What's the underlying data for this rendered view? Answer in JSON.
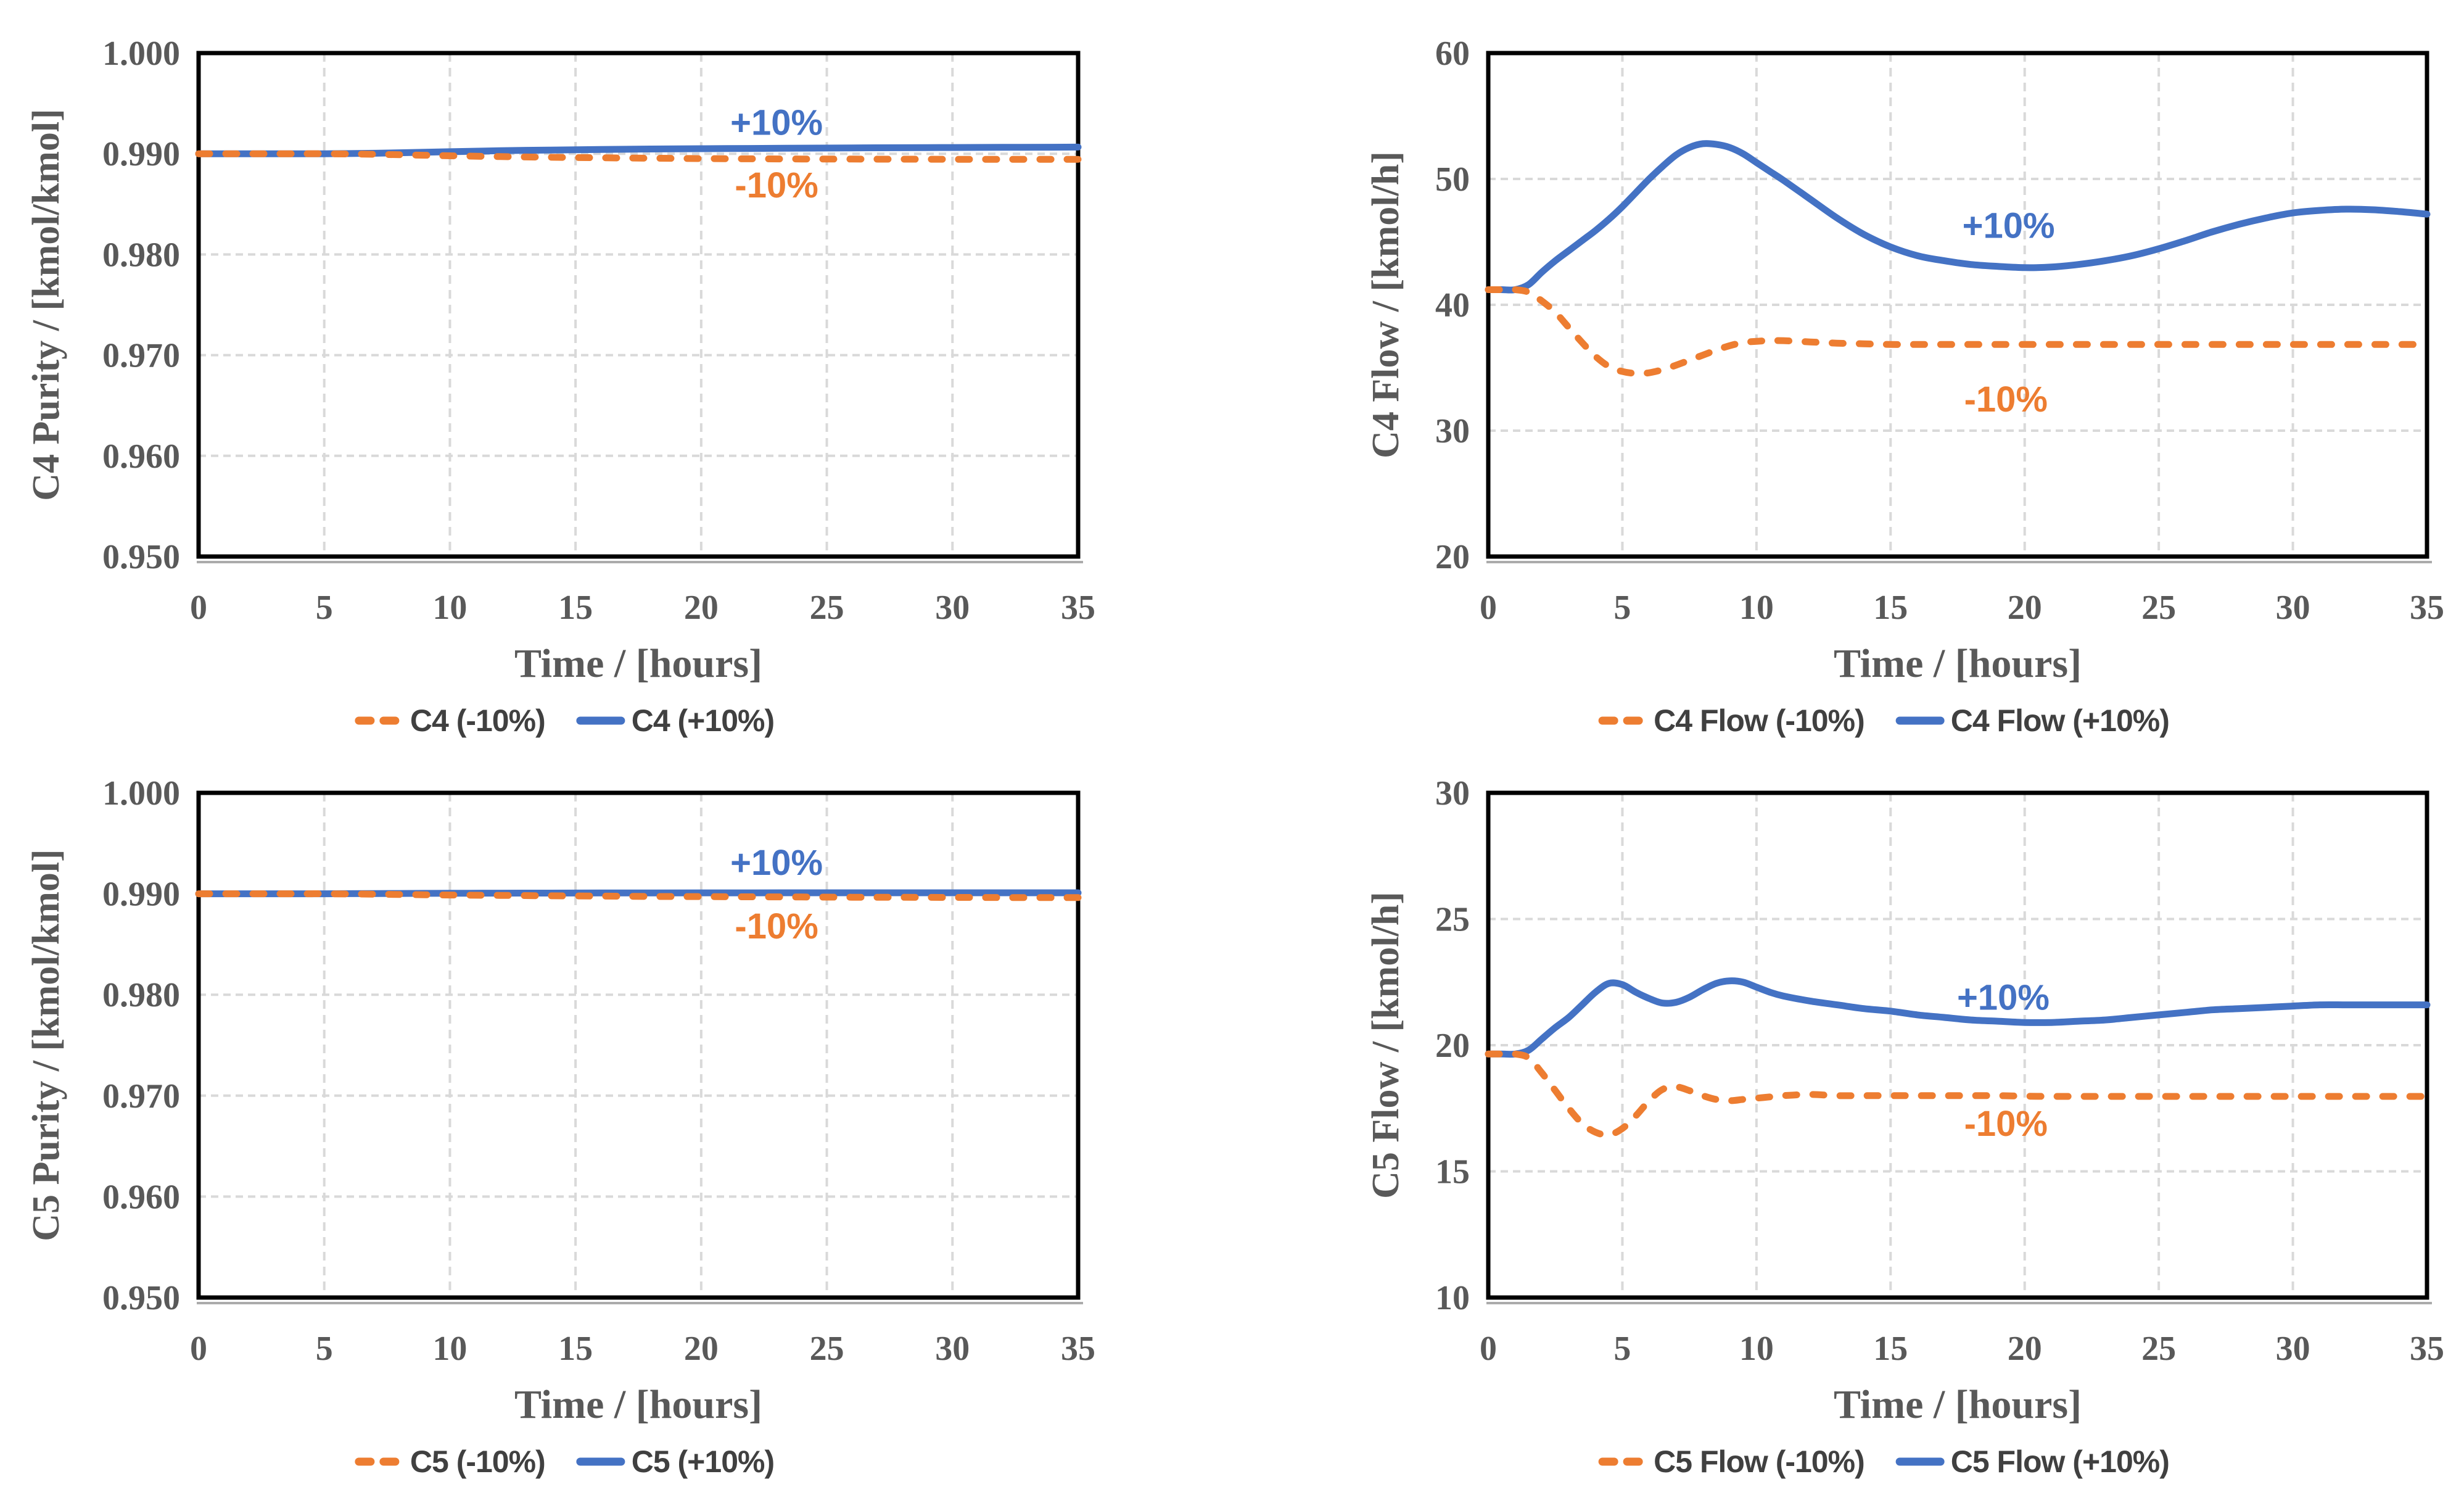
{
  "page": {
    "background": "#FFFFFF"
  },
  "colors": {
    "blue": "#4472C4",
    "orange": "#ED7D31",
    "tick_text": "#595959",
    "legend_text": "#404040",
    "gridline": "#D9D9D9",
    "axis_line": "#000000",
    "axis_shadow": "#ABABAB"
  },
  "chart_data": [
    {
      "id": "c4-purity",
      "type": "line",
      "xlabel": "Time / [hours]",
      "ylabel": "C4 Purity / [kmol/kmol]",
      "xlim": [
        0,
        35
      ],
      "ylim": [
        0.95,
        1.0
      ],
      "xticks": [
        0,
        5,
        10,
        15,
        20,
        25,
        30,
        35
      ],
      "yticks": [
        0.95,
        0.96,
        0.97,
        0.98,
        0.99,
        1.0
      ],
      "ytick_labels": [
        "0.950",
        "0.960",
        "0.970",
        "0.980",
        "0.990",
        "1.000"
      ],
      "grid": true,
      "legend_position": "bottom",
      "series": [
        {
          "name": "C4 (-10%)",
          "color": "orange",
          "dash": true,
          "x": [
            0,
            1,
            2,
            3,
            4,
            5,
            6,
            7,
            8,
            9,
            10,
            12,
            14,
            16,
            18,
            20,
            22,
            24,
            26,
            28,
            30,
            32,
            34,
            35
          ],
          "y": [
            0.99,
            0.99,
            0.99,
            0.99,
            0.99,
            0.99,
            0.98998,
            0.98995,
            0.9899,
            0.98985,
            0.9898,
            0.98972,
            0.98965,
            0.9896,
            0.98956,
            0.98952,
            0.9895,
            0.98948,
            0.98947,
            0.98946,
            0.98945,
            0.98945,
            0.98945,
            0.98945
          ]
        },
        {
          "name": "C4 (+10%)",
          "color": "blue",
          "dash": false,
          "x": [
            0,
            1,
            2,
            3,
            4,
            5,
            6,
            7,
            8,
            9,
            10,
            12,
            14,
            16,
            18,
            20,
            22,
            24,
            26,
            28,
            30,
            32,
            34,
            35
          ],
          "y": [
            0.99,
            0.99,
            0.99,
            0.99,
            0.99,
            0.99,
            0.99002,
            0.99005,
            0.9901,
            0.99015,
            0.9902,
            0.9903,
            0.99037,
            0.99042,
            0.99047,
            0.9905,
            0.99053,
            0.99056,
            0.99058,
            0.9906,
            0.99062,
            0.99064,
            0.99065,
            0.99066
          ]
        }
      ],
      "annotations": [
        {
          "text": "+10%",
          "color": "blue",
          "x": 23,
          "y": 0.9931
        },
        {
          "text": "-10%",
          "color": "orange",
          "x": 23,
          "y": 0.9869
        }
      ]
    },
    {
      "id": "c4-flow",
      "type": "line",
      "xlabel": "Time / [hours]",
      "ylabel": "C4 Flow / [kmol/h]",
      "xlim": [
        0,
        35
      ],
      "ylim": [
        20,
        60
      ],
      "xticks": [
        0,
        5,
        10,
        15,
        20,
        25,
        30,
        35
      ],
      "yticks": [
        20,
        30,
        40,
        50,
        60
      ],
      "ytick_labels": [
        "20",
        "30",
        "40",
        "50",
        "60"
      ],
      "grid": true,
      "legend_position": "bottom",
      "series": [
        {
          "name": "C4 Flow (-10%)",
          "color": "orange",
          "dash": true,
          "x": [
            0,
            0.5,
            1,
            1.5,
            2,
            2.5,
            3,
            3.5,
            4,
            4.5,
            5,
            5.5,
            6,
            6.5,
            7,
            7.5,
            8,
            8.5,
            9,
            9.5,
            10,
            10.5,
            11,
            12,
            13,
            14,
            15,
            16,
            17,
            18,
            19,
            20,
            21,
            22,
            23,
            24,
            25,
            26,
            27,
            28,
            29,
            30,
            31,
            32,
            33,
            34,
            35
          ],
          "y": [
            41.2,
            41.2,
            41.2,
            41.0,
            40.3,
            39.4,
            38.2,
            37.0,
            35.9,
            35.1,
            34.7,
            34.55,
            34.6,
            34.85,
            35.2,
            35.6,
            36.0,
            36.4,
            36.75,
            37.0,
            37.1,
            37.15,
            37.15,
            37.05,
            36.95,
            36.9,
            36.85,
            36.85,
            36.85,
            36.85,
            36.85,
            36.85,
            36.85,
            36.85,
            36.85,
            36.85,
            36.85,
            36.85,
            36.85,
            36.85,
            36.85,
            36.85,
            36.85,
            36.85,
            36.85,
            36.85,
            36.85
          ]
        },
        {
          "name": "C4 Flow (+10%)",
          "color": "blue",
          "dash": false,
          "x": [
            0,
            0.5,
            1,
            1.5,
            2,
            2.5,
            3,
            3.5,
            4,
            4.5,
            5,
            5.5,
            6,
            6.5,
            7,
            7.5,
            8,
            8.5,
            9,
            9.5,
            10,
            10.5,
            11,
            12,
            13,
            14,
            15,
            16,
            17,
            18,
            19,
            20,
            21,
            22,
            23,
            24,
            25,
            26,
            27,
            28,
            29,
            30,
            31,
            32,
            33,
            34,
            35
          ],
          "y": [
            41.2,
            41.2,
            41.2,
            41.6,
            42.6,
            43.5,
            44.3,
            45.1,
            45.9,
            46.8,
            47.8,
            48.9,
            50.0,
            51.0,
            51.9,
            52.5,
            52.8,
            52.75,
            52.5,
            52.0,
            51.3,
            50.6,
            49.9,
            48.4,
            46.9,
            45.6,
            44.6,
            43.9,
            43.5,
            43.2,
            43.05,
            42.95,
            43.0,
            43.2,
            43.5,
            43.9,
            44.45,
            45.1,
            45.8,
            46.4,
            46.9,
            47.3,
            47.5,
            47.6,
            47.55,
            47.4,
            47.2
          ]
        }
      ],
      "annotations": [
        {
          "text": "+10%",
          "color": "blue",
          "x": 19.4,
          "y": 46.3
        },
        {
          "text": "-10%",
          "color": "orange",
          "x": 19.3,
          "y": 32.5
        }
      ]
    },
    {
      "id": "c5-purity",
      "type": "line",
      "xlabel": "Time / [hours]",
      "ylabel": "C5 Purity / [kmol/kmol]",
      "xlim": [
        0,
        35
      ],
      "ylim": [
        0.95,
        1.0
      ],
      "xticks": [
        0,
        5,
        10,
        15,
        20,
        25,
        30,
        35
      ],
      "yticks": [
        0.95,
        0.96,
        0.97,
        0.98,
        0.99,
        1.0
      ],
      "ytick_labels": [
        "0.950",
        "0.960",
        "0.970",
        "0.980",
        "0.990",
        "1.000"
      ],
      "grid": true,
      "legend_position": "bottom",
      "series": [
        {
          "name": "C5 (-10%)",
          "color": "orange",
          "dash": true,
          "x": [
            0,
            1,
            2,
            3,
            4,
            5,
            6,
            7,
            8,
            9,
            10,
            12,
            14,
            16,
            18,
            20,
            22,
            24,
            26,
            28,
            30,
            32,
            34,
            35
          ],
          "y": [
            0.99,
            0.99,
            0.99,
            0.99,
            0.99,
            0.99,
            0.98998,
            0.98996,
            0.98993,
            0.9899,
            0.98988,
            0.98984,
            0.9898,
            0.98977,
            0.98974,
            0.98972,
            0.9897,
            0.98968,
            0.98966,
            0.98965,
            0.98964,
            0.98963,
            0.98962,
            0.98962
          ]
        },
        {
          "name": "C5 (+10%)",
          "color": "blue",
          "dash": false,
          "x": [
            0,
            1,
            2,
            3,
            4,
            5,
            6,
            7,
            8,
            9,
            10,
            12,
            14,
            16,
            18,
            20,
            22,
            24,
            26,
            28,
            30,
            32,
            34,
            35
          ],
          "y": [
            0.99,
            0.99,
            0.99,
            0.99,
            0.99,
            0.99,
            0.99001,
            0.99002,
            0.99003,
            0.99004,
            0.99005,
            0.99006,
            0.99007,
            0.99008,
            0.99008,
            0.99009,
            0.99009,
            0.9901,
            0.9901,
            0.9901,
            0.9901,
            0.9901,
            0.9901,
            0.9901
          ]
        }
      ],
      "annotations": [
        {
          "text": "+10%",
          "color": "blue",
          "x": 23,
          "y": 0.9931
        },
        {
          "text": "-10%",
          "color": "orange",
          "x": 23,
          "y": 0.9868
        }
      ]
    },
    {
      "id": "c5-flow",
      "type": "line",
      "xlabel": "Time / [hours]",
      "ylabel": "C5 Flow / [kmol/h]",
      "xlim": [
        0,
        35
      ],
      "ylim": [
        10,
        30
      ],
      "xticks": [
        0,
        5,
        10,
        15,
        20,
        25,
        30,
        35
      ],
      "yticks": [
        10,
        15,
        20,
        25,
        30
      ],
      "ytick_labels": [
        "10",
        "15",
        "20",
        "25",
        "30"
      ],
      "grid": true,
      "legend_position": "bottom",
      "series": [
        {
          "name": "C5 Flow (-10%)",
          "color": "orange",
          "dash": true,
          "x": [
            0,
            0.5,
            1,
            1.5,
            2,
            2.5,
            3,
            3.5,
            4,
            4.5,
            5,
            5.5,
            6,
            6.5,
            7,
            7.5,
            8,
            8.5,
            9,
            9.5,
            10,
            10.5,
            11,
            12,
            13,
            14,
            15,
            16,
            17,
            18,
            19,
            20,
            21,
            22,
            23,
            24,
            25,
            26,
            27,
            28,
            29,
            30,
            31,
            32,
            33,
            34,
            35
          ],
          "y": [
            19.65,
            19.65,
            19.65,
            19.5,
            18.9,
            18.2,
            17.5,
            16.9,
            16.55,
            16.45,
            16.7,
            17.2,
            17.8,
            18.25,
            18.35,
            18.2,
            18.0,
            17.85,
            17.8,
            17.85,
            17.9,
            17.95,
            18.0,
            18.05,
            18.0,
            18.0,
            18.0,
            18.0,
            18.0,
            18.0,
            18.0,
            17.98,
            17.97,
            17.97,
            17.97,
            17.97,
            17.97,
            17.97,
            17.97,
            17.97,
            17.97,
            17.97,
            17.97,
            17.97,
            17.97,
            17.97,
            17.97
          ]
        },
        {
          "name": "C5 Flow (+10%)",
          "color": "blue",
          "dash": false,
          "x": [
            0,
            0.5,
            1,
            1.5,
            2,
            2.5,
            3,
            3.5,
            4,
            4.5,
            5,
            5.5,
            6,
            6.5,
            7,
            7.5,
            8,
            8.5,
            9,
            9.5,
            10,
            10.5,
            11,
            12,
            13,
            14,
            15,
            16,
            17,
            18,
            19,
            20,
            21,
            22,
            23,
            24,
            25,
            26,
            27,
            28,
            29,
            30,
            31,
            32,
            33,
            34,
            35
          ],
          "y": [
            19.65,
            19.65,
            19.65,
            19.8,
            20.25,
            20.7,
            21.1,
            21.6,
            22.1,
            22.45,
            22.4,
            22.1,
            21.85,
            21.67,
            21.7,
            21.9,
            22.2,
            22.45,
            22.55,
            22.5,
            22.3,
            22.1,
            21.95,
            21.75,
            21.6,
            21.45,
            21.35,
            21.2,
            21.1,
            21.0,
            20.95,
            20.9,
            20.9,
            20.95,
            21.0,
            21.1,
            21.2,
            21.3,
            21.4,
            21.45,
            21.5,
            21.55,
            21.6,
            21.6,
            21.6,
            21.6,
            21.6
          ]
        }
      ],
      "annotations": [
        {
          "text": "+10%",
          "color": "blue",
          "x": 19.2,
          "y": 21.9
        },
        {
          "text": "-10%",
          "color": "orange",
          "x": 19.3,
          "y": 16.9
        }
      ]
    }
  ]
}
